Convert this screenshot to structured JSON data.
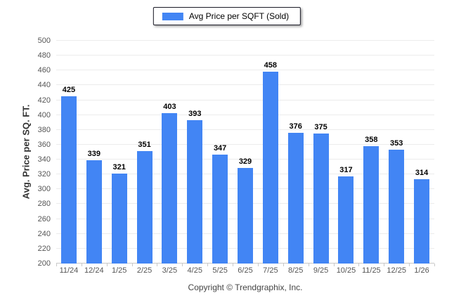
{
  "page": {
    "footer": "Copyright © Trendgraphix, Inc."
  },
  "legend": {
    "label": "Avg Price per SQFT (Sold)"
  },
  "colors": {
    "bar": "#4285f4",
    "grid": "#ececec",
    "axis": "#c9c9c9",
    "tick_text": "#555555",
    "value_text": "#000000"
  },
  "chart_data": {
    "type": "bar",
    "title": "",
    "xlabel": "",
    "ylabel": "Avg. Price per SQ. FT.",
    "series": [
      {
        "name": "Avg Price per SQFT (Sold)",
        "values": [
          425,
          339,
          321,
          351,
          403,
          393,
          347,
          329,
          458,
          376,
          375,
          317,
          358,
          353,
          314
        ]
      }
    ],
    "categories": [
      "11/24",
      "12/24",
      "1/25",
      "2/25",
      "3/25",
      "4/25",
      "5/25",
      "6/25",
      "7/25",
      "8/25",
      "9/25",
      "10/25",
      "11/25",
      "12/25",
      "1/26"
    ],
    "ylim": [
      200,
      500
    ],
    "ytick_step": 20,
    "yticks": [
      200,
      220,
      240,
      260,
      280,
      300,
      320,
      340,
      360,
      380,
      400,
      420,
      440,
      460,
      480,
      500
    ],
    "grid": true,
    "legend_position": "top-center",
    "bar_value_labels": true
  }
}
